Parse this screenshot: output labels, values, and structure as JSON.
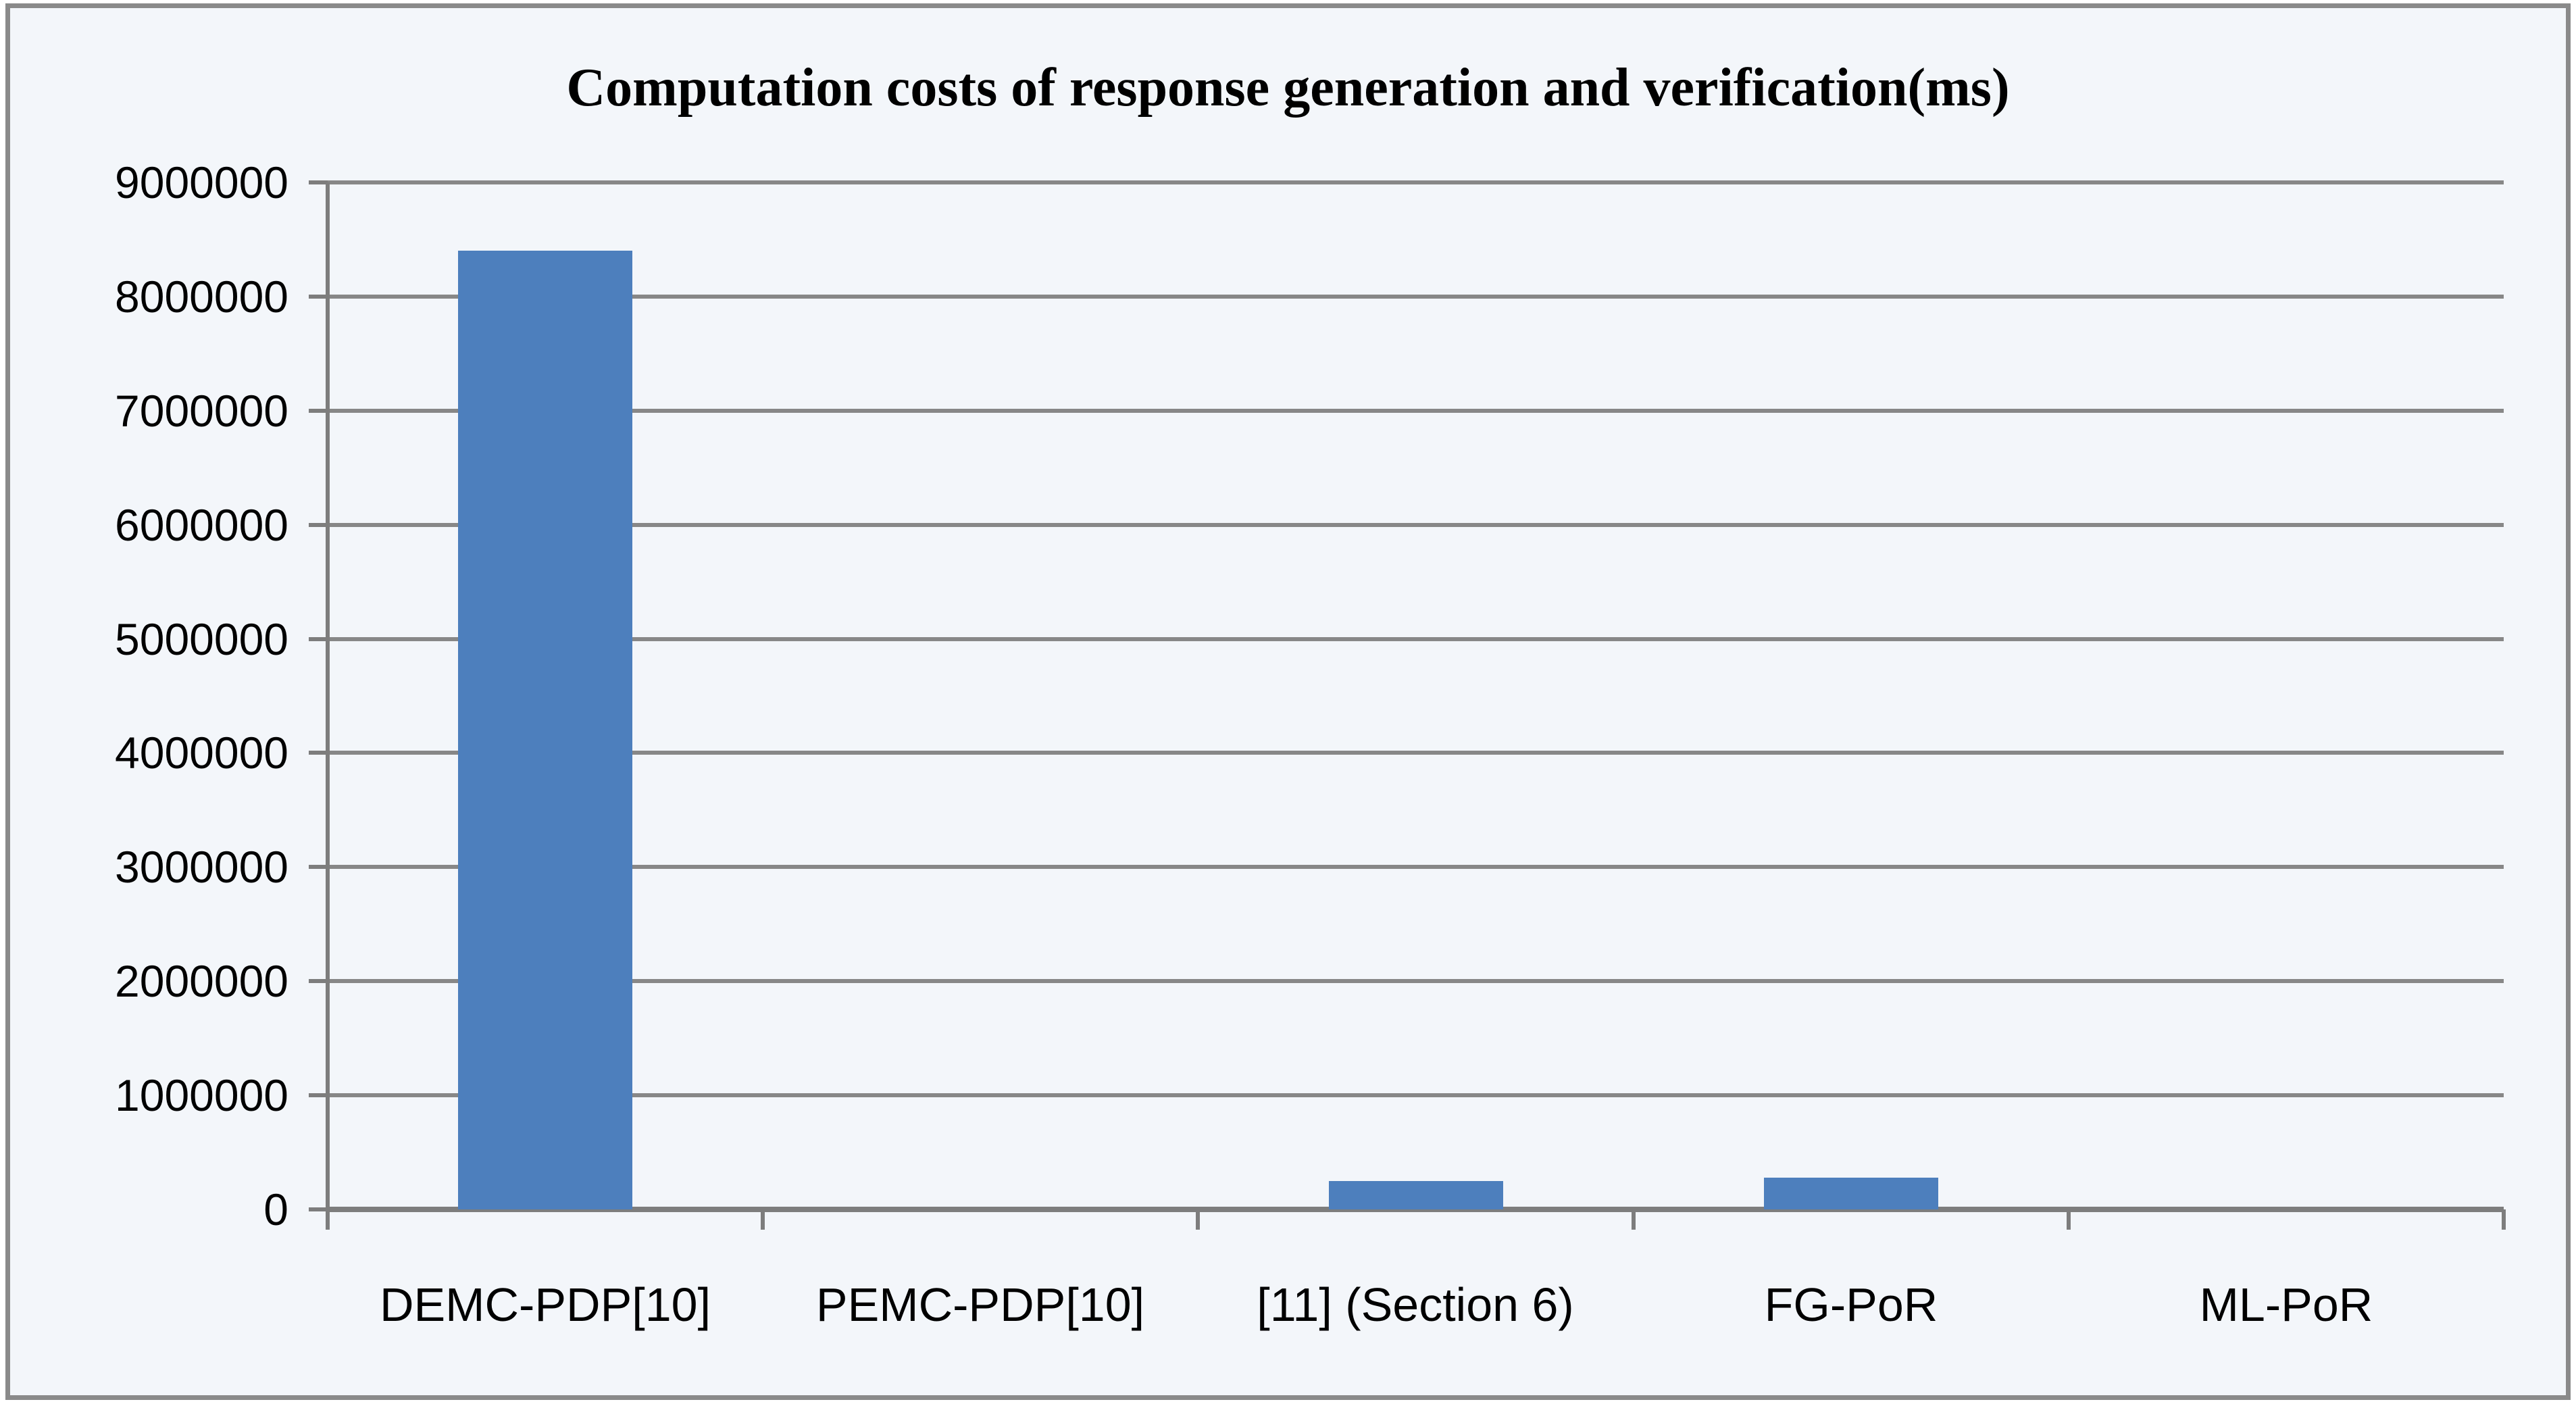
{
  "chart_data": {
    "type": "bar",
    "title": "Computation costs of response generation and verification(ms)",
    "categories": [
      "DEMC-PDP[10]",
      "PEMC-PDP[10]",
      "[11] (Section 6)",
      "FG-PoR",
      "ML-PoR"
    ],
    "values": [
      8400000,
      0,
      250000,
      280000,
      0
    ],
    "xlabel": "",
    "ylabel": "",
    "ylim": [
      0,
      9000000
    ],
    "ytick_step": 1000000,
    "yticks": [
      "0",
      "1000000",
      "2000000",
      "3000000",
      "4000000",
      "5000000",
      "6000000",
      "7000000",
      "8000000",
      "9000000"
    ],
    "grid": true,
    "legend_position": "none",
    "colors": {
      "bar": "#4D7FBD",
      "gridline": "#878787",
      "axis": "#7d7d7d",
      "plot_background": "#f3f6fa",
      "frame_border": "#8a8a8a",
      "text": "#000000"
    }
  }
}
